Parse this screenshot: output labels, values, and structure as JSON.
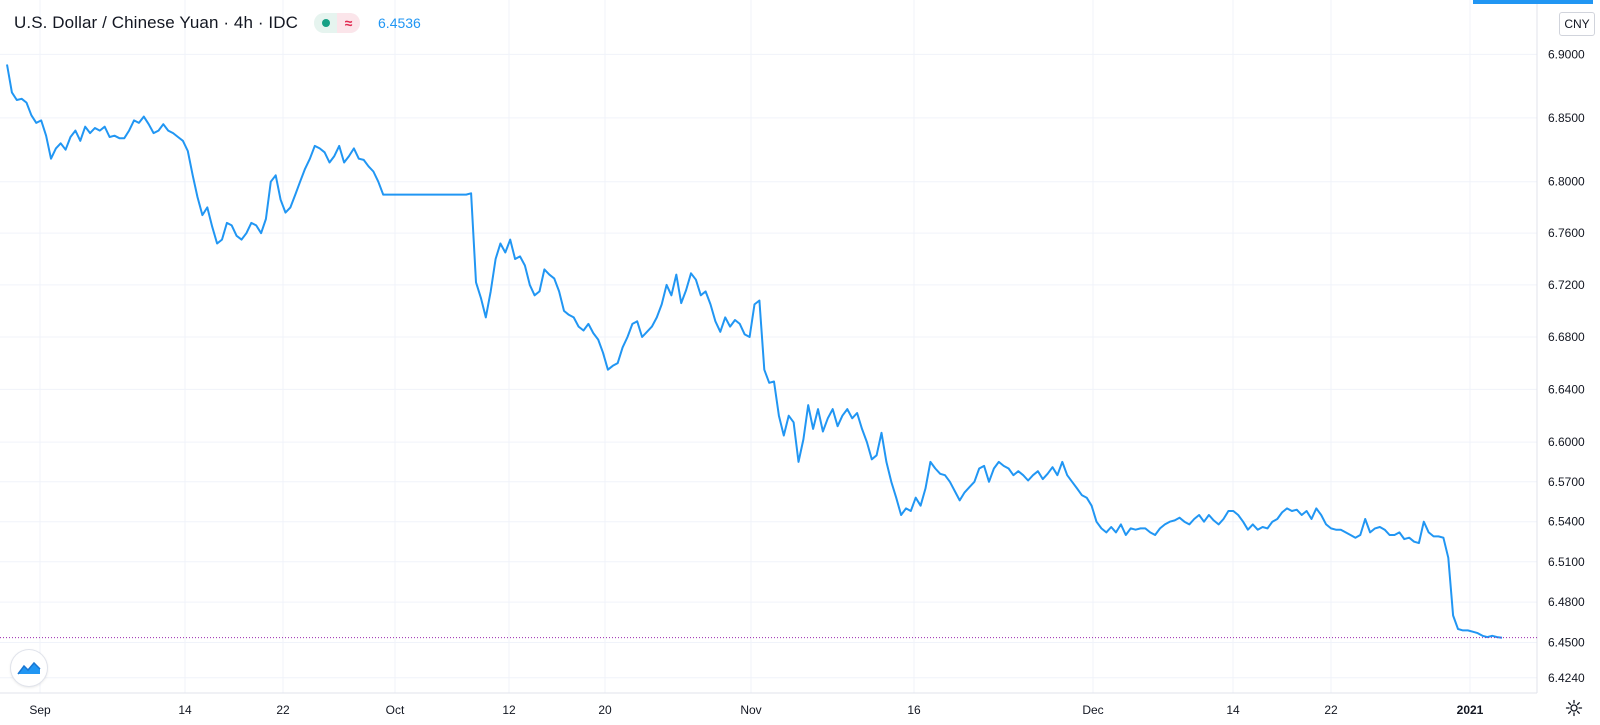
{
  "header": {
    "symbol_title": "U.S. Dollar / Chinese Yuan · 4h · IDC",
    "badge_icon": "approx-icon",
    "badge_symbol": "≈",
    "last_price": "6.4536"
  },
  "currency_button": "CNY",
  "colors": {
    "series": "#2196f3",
    "grid": "#f0f3fa",
    "axis_text": "#131722",
    "last_price_line": "#9c27b0"
  },
  "chart_data": {
    "type": "line",
    "title": "",
    "xlabel": "",
    "ylabel": "",
    "x_ticks": [
      "Sep",
      "14",
      "22",
      "Oct",
      "12",
      "20",
      "Nov",
      "16",
      "Dec",
      "14",
      "22",
      "2021"
    ],
    "y_ticks": [
      "6.9000",
      "6.8500",
      "6.8000",
      "6.7600",
      "6.7200",
      "6.6800",
      "6.6400",
      "6.6000",
      "6.5700",
      "6.5400",
      "6.5100",
      "6.4800",
      "6.4500",
      "6.4240"
    ],
    "y_scale": "log",
    "ylim": [
      6.415,
      6.94
    ],
    "grid": true,
    "last_value": 6.4536,
    "series": [
      {
        "values": [
          6.892,
          6.87,
          6.864,
          6.865,
          6.862,
          6.852,
          6.846,
          6.848,
          6.836,
          6.818,
          6.826,
          6.83,
          6.825,
          6.835,
          6.84,
          6.832,
          6.843,
          6.838,
          6.842,
          6.84,
          6.843,
          6.835,
          6.836,
          6.834,
          6.834,
          6.84,
          6.848,
          6.846,
          6.851,
          6.845,
          6.838,
          6.84,
          6.845,
          6.84,
          6.838,
          6.835,
          6.832,
          6.824,
          6.805,
          6.788,
          6.774,
          6.78,
          6.765,
          6.752,
          6.755,
          6.768,
          6.766,
          6.758,
          6.755,
          6.76,
          6.768,
          6.766,
          6.76,
          6.771,
          6.8,
          6.805,
          6.786,
          6.776,
          6.78,
          6.79,
          6.8,
          6.81,
          6.818,
          6.828,
          6.826,
          6.823,
          6.815,
          6.82,
          6.828,
          6.815,
          6.82,
          6.826,
          6.818,
          6.817,
          6.812,
          6.808,
          6.8,
          6.79,
          6.79,
          6.79,
          6.79,
          6.79,
          6.79,
          6.79,
          6.79,
          6.79,
          6.79,
          6.79,
          6.79,
          6.79,
          6.79,
          6.79,
          6.79,
          6.79,
          6.79,
          6.791,
          6.722,
          6.71,
          6.695,
          6.715,
          6.74,
          6.752,
          6.745,
          6.755,
          6.74,
          6.742,
          6.735,
          6.72,
          6.712,
          6.715,
          6.732,
          6.728,
          6.725,
          6.715,
          6.7,
          6.697,
          6.695,
          6.688,
          6.685,
          6.69,
          6.683,
          6.678,
          6.668,
          6.655,
          6.658,
          6.66,
          6.672,
          6.68,
          6.69,
          6.692,
          6.68,
          6.684,
          6.688,
          6.695,
          6.705,
          6.72,
          6.712,
          6.728,
          6.706,
          6.716,
          6.729,
          6.724,
          6.712,
          6.715,
          6.705,
          6.692,
          6.684,
          6.695,
          6.688,
          6.693,
          6.69,
          6.682,
          6.68,
          6.705,
          6.708,
          6.655,
          6.645,
          6.646,
          6.62,
          6.605,
          6.62,
          6.615,
          6.585,
          6.602,
          6.628,
          6.61,
          6.625,
          6.608,
          6.618,
          6.625,
          6.612,
          6.62,
          6.625,
          6.618,
          6.622,
          6.61,
          6.6,
          6.587,
          6.59,
          6.607,
          6.585,
          6.57,
          6.558,
          6.545,
          6.55,
          6.548,
          6.558,
          6.552,
          6.565,
          6.585,
          6.58,
          6.576,
          6.575,
          6.57,
          6.563,
          6.556,
          6.562,
          6.566,
          6.57,
          6.58,
          6.582,
          6.57,
          6.58,
          6.585,
          6.582,
          6.58,
          6.575,
          6.578,
          6.575,
          6.571,
          6.575,
          6.578,
          6.572,
          6.576,
          6.581,
          6.575,
          6.585,
          6.575,
          6.57,
          6.565,
          6.56,
          6.558,
          6.552,
          6.54,
          6.535,
          6.532,
          6.536,
          6.532,
          6.538,
          6.53,
          6.535,
          6.534,
          6.535,
          6.535,
          6.532,
          6.53,
          6.535,
          6.538,
          6.54,
          6.541,
          6.543,
          6.54,
          6.538,
          6.542,
          6.545,
          6.54,
          6.545,
          6.541,
          6.538,
          6.542,
          6.548,
          6.548,
          6.545,
          6.54,
          6.534,
          6.538,
          6.534,
          6.536,
          6.535,
          6.54,
          6.542,
          6.547,
          6.55,
          6.548,
          6.549,
          6.545,
          6.548,
          6.542,
          6.55,
          6.545,
          6.538,
          6.535,
          6.534,
          6.534,
          6.532,
          6.53,
          6.528,
          6.53,
          6.542,
          6.532,
          6.535,
          6.536,
          6.534,
          6.53,
          6.53,
          6.532,
          6.527,
          6.528,
          6.525,
          6.524,
          6.54,
          6.532,
          6.529,
          6.529,
          6.528,
          6.513,
          6.47,
          6.46,
          6.459,
          6.459,
          6.458,
          6.457,
          6.455,
          6.454,
          6.455,
          6.454,
          6.4536
        ]
      }
    ]
  }
}
